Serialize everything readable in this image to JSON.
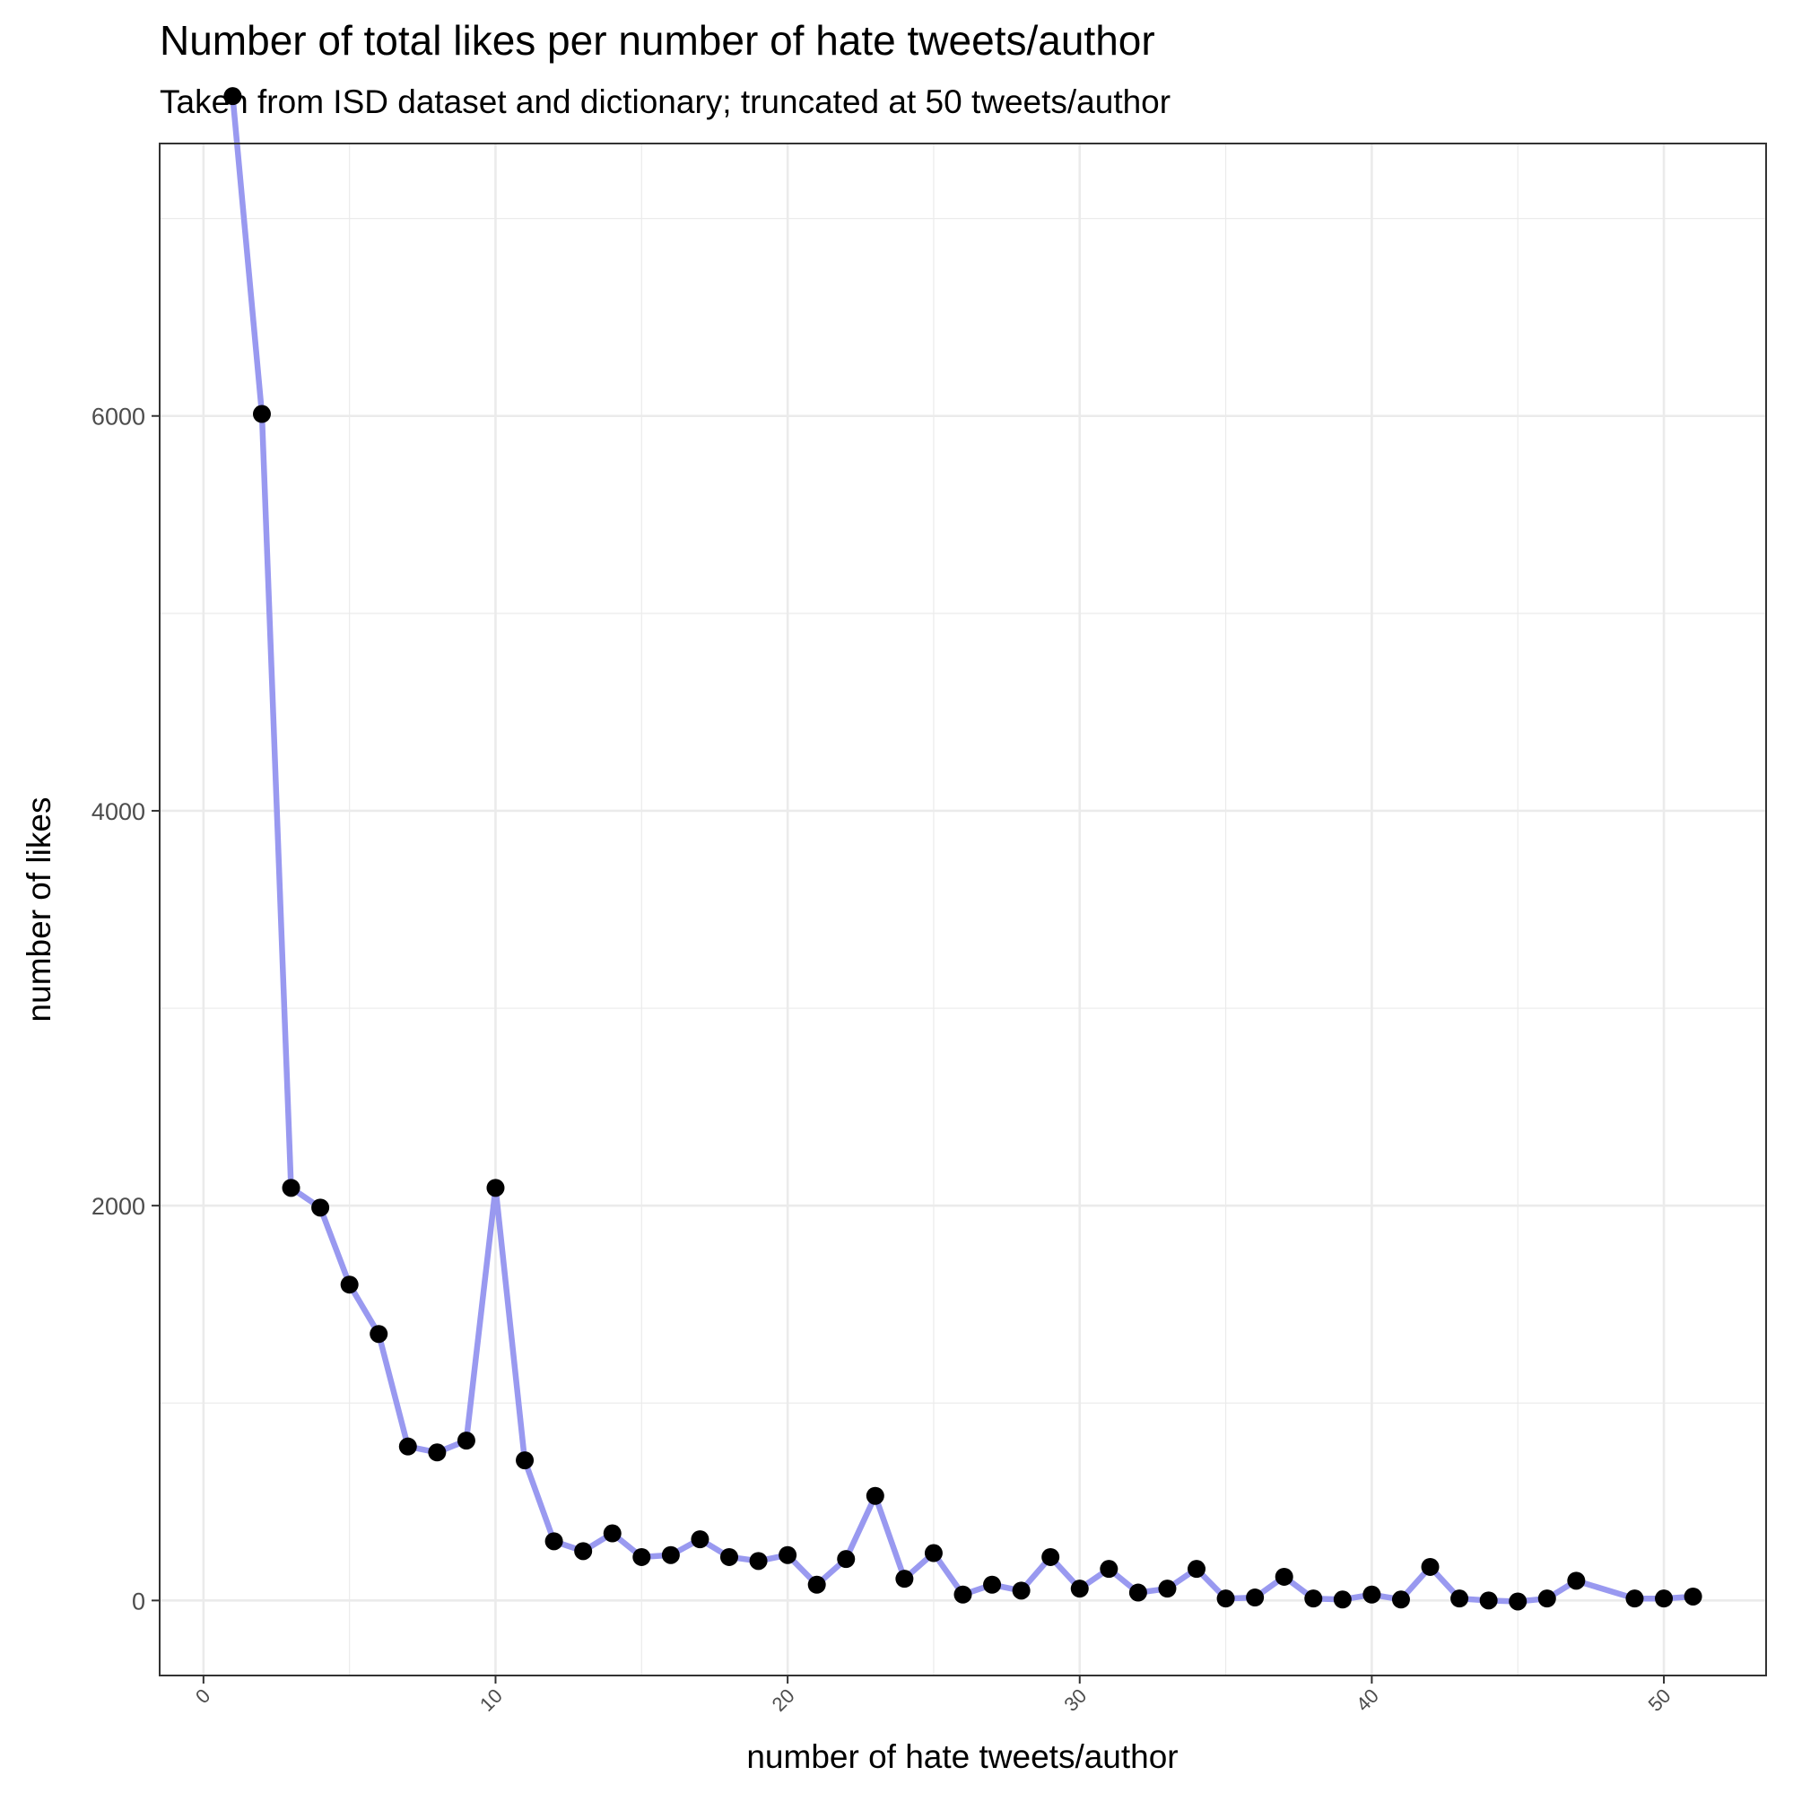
{
  "chart_data": {
    "type": "line",
    "title": "Number of total likes per number of hate tweets/author",
    "subtitle": "Taken from ISD dataset and dictionary; truncated at 50 tweets/author",
    "xlabel": "number of hate tweets/author",
    "ylabel": "number of likes",
    "xlim": [
      -1.5,
      53.5
    ],
    "ylim": [
      -380,
      7380
    ],
    "x_ticks": [
      0,
      10,
      20,
      30,
      40,
      50
    ],
    "x_tick_labels": [
      "0",
      "10",
      "20",
      "30",
      "40",
      "50"
    ],
    "y_ticks": [
      0,
      2000,
      4000,
      6000
    ],
    "y_tick_labels": [
      "0",
      "2000",
      "4000",
      "6000"
    ],
    "grid": true,
    "line_color": "#9999f0",
    "point_color": "#000000",
    "series": [
      {
        "x": [
          1,
          2,
          3,
          4,
          5,
          6,
          7,
          8,
          9,
          10,
          11,
          12,
          13,
          14,
          15,
          16,
          17,
          18,
          19,
          20,
          21,
          22,
          23,
          24,
          25,
          26,
          27,
          28,
          29,
          30,
          31,
          32,
          33,
          34,
          35,
          36,
          37,
          38,
          39,
          40,
          41,
          42,
          43,
          44,
          45,
          46,
          47,
          49,
          50,
          51
        ],
        "values": [
          7620,
          6010,
          2090,
          1990,
          1600,
          1350,
          780,
          750,
          810,
          2090,
          710,
          300,
          250,
          340,
          220,
          230,
          310,
          220,
          200,
          230,
          80,
          210,
          530,
          110,
          240,
          30,
          80,
          50,
          220,
          60,
          160,
          40,
          60,
          160,
          10,
          15,
          120,
          10,
          5,
          30,
          5,
          170,
          10,
          0,
          -5,
          10,
          100,
          10,
          10,
          20
        ]
      }
    ]
  }
}
